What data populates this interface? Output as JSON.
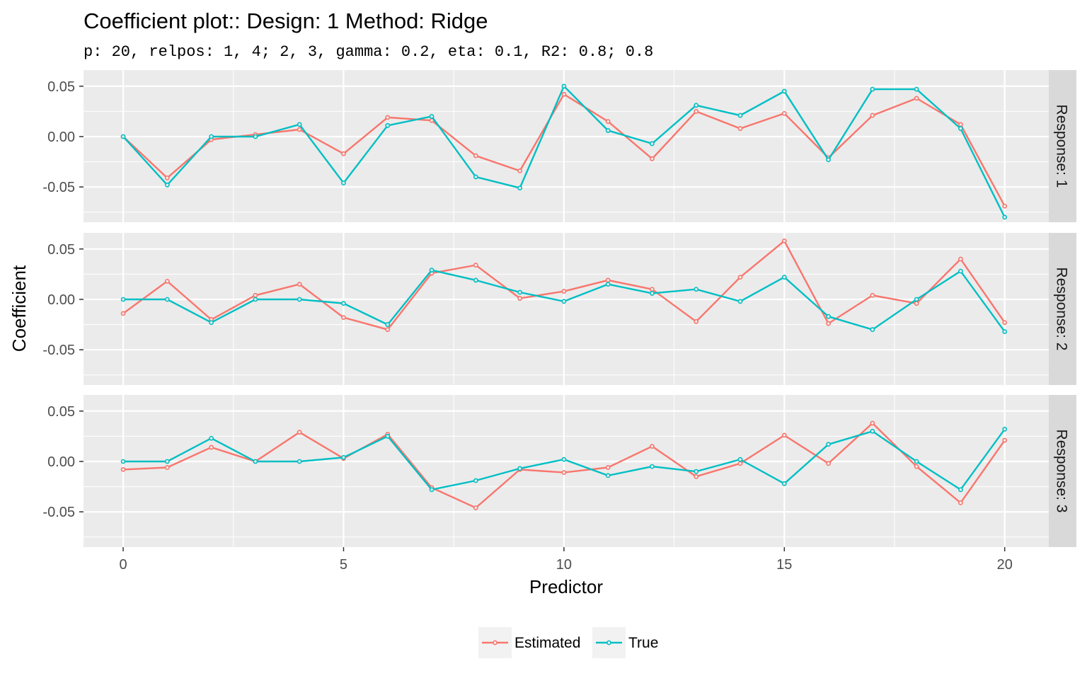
{
  "chart_data": {
    "type": "line",
    "title": "Coefficient plot::  Design: 1 Method: Ridge",
    "subtitle": "p: 20, relpos: 1, 4; 2, 3, gamma: 0.2, eta: 0.1, R2: 0.8; 0.8",
    "xlabel": "Predictor",
    "ylabel": "Coefficient",
    "xlim": [
      -0.9,
      21.0
    ],
    "ylim": [
      -0.085,
      0.066
    ],
    "x_ticks": [
      0,
      5,
      10,
      15,
      20
    ],
    "x_tick_labels": [
      "0",
      "5",
      "10",
      "15",
      "20"
    ],
    "y_ticks": [
      -0.05,
      0,
      0.05
    ],
    "y_tick_labels": [
      "-0.05",
      "0.00",
      "0.05"
    ],
    "grid": true,
    "legend_position": "bottom",
    "legend": [
      {
        "label": "Estimated",
        "color": "#F8766D"
      },
      {
        "label": "True",
        "color": "#00BFC4"
      }
    ],
    "x": [
      0,
      1,
      2,
      3,
      4,
      5,
      6,
      7,
      8,
      9,
      10,
      11,
      12,
      13,
      14,
      15,
      16,
      17,
      18,
      19,
      20
    ],
    "panels": [
      {
        "strip": "Response: 1",
        "series": [
          {
            "name": "Estimated",
            "color": "#F8766D",
            "values": [
              0,
              -0.041,
              -0.003,
              0.002,
              0.007,
              -0.017,
              0.019,
              0.016,
              -0.019,
              -0.034,
              0.042,
              0.015,
              -0.022,
              0.025,
              0.008,
              0.023,
              -0.021,
              0.021,
              0.038,
              0.012,
              -0.069
            ]
          },
          {
            "name": "True",
            "color": "#00BFC4",
            "values": [
              0,
              -0.048,
              0,
              0,
              0.012,
              -0.046,
              0.011,
              0.02,
              -0.04,
              -0.051,
              0.05,
              0.006,
              -0.007,
              0.031,
              0.021,
              0.045,
              -0.023,
              0.047,
              0.047,
              0.008,
              -0.08
            ]
          }
        ]
      },
      {
        "strip": "Response: 2",
        "series": [
          {
            "name": "Estimated",
            "color": "#F8766D",
            "values": [
              -0.014,
              0.018,
              -0.02,
              0.004,
              0.015,
              -0.018,
              -0.03,
              0.026,
              0.034,
              0.001,
              0.008,
              0.019,
              0.01,
              -0.022,
              0.022,
              0.058,
              -0.024,
              0.004,
              -0.004,
              0.04,
              -0.023
            ]
          },
          {
            "name": "True",
            "color": "#00BFC4",
            "values": [
              0,
              0,
              -0.023,
              0,
              0,
              -0.004,
              -0.025,
              0.029,
              0.019,
              0.007,
              -0.002,
              0.015,
              0.006,
              0.01,
              -0.002,
              0.022,
              -0.017,
              -0.03,
              0,
              0.028,
              -0.032
            ]
          }
        ]
      },
      {
        "strip": "Response: 3",
        "series": [
          {
            "name": "Estimated",
            "color": "#F8766D",
            "values": [
              -0.008,
              -0.006,
              0.014,
              0,
              0.029,
              0.003,
              0.027,
              -0.026,
              -0.046,
              -0.008,
              -0.011,
              -0.006,
              0.015,
              -0.015,
              -0.002,
              0.026,
              -0.002,
              0.038,
              -0.005,
              -0.041,
              0.021
            ]
          },
          {
            "name": "True",
            "color": "#00BFC4",
            "values": [
              0,
              0,
              0.023,
              0,
              0,
              0.004,
              0.025,
              -0.028,
              -0.019,
              -0.007,
              0.002,
              -0.014,
              -0.005,
              -0.01,
              0.002,
              -0.022,
              0.017,
              0.03,
              0,
              -0.028,
              0.032
            ]
          }
        ]
      }
    ]
  }
}
